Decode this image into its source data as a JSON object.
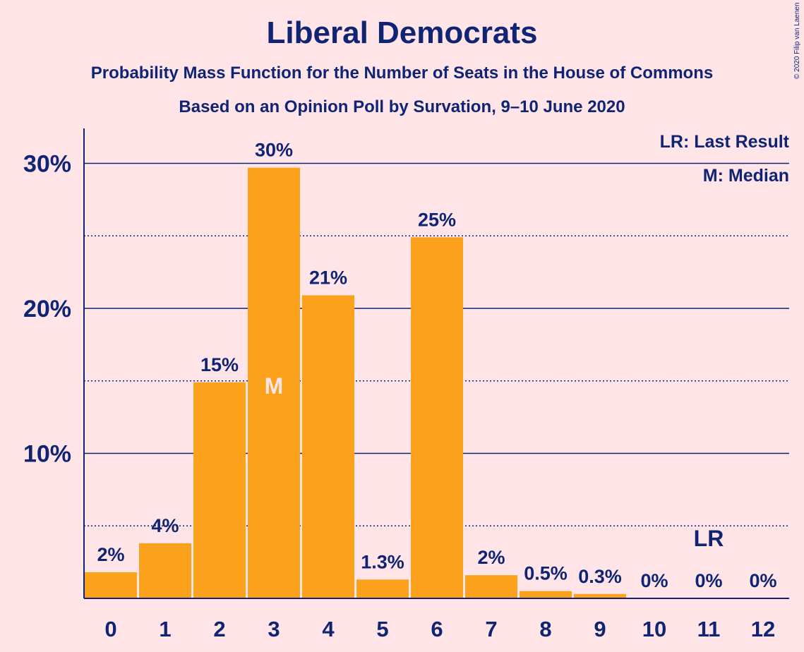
{
  "chart_data": {
    "type": "bar",
    "title": "Liberal Democrats",
    "subtitle": "Probability Mass Function for the Number of Seats in the House of Commons",
    "subtitle2": "Based on an Opinion Poll by Survation, 9–10 June 2020",
    "copyright": "© 2020 Filip van Laenen",
    "categories": [
      "0",
      "1",
      "2",
      "3",
      "4",
      "5",
      "6",
      "7",
      "8",
      "9",
      "10",
      "11",
      "12"
    ],
    "values": [
      1.8,
      3.8,
      14.9,
      29.7,
      20.9,
      1.3,
      24.9,
      1.6,
      0.5,
      0.3,
      0,
      0,
      0
    ],
    "value_labels": [
      "2%",
      "4%",
      "15%",
      "30%",
      "21%",
      "1.3%",
      "25%",
      "2%",
      "0.5%",
      "0.3%",
      "0%",
      "0%",
      "0%"
    ],
    "ylim": [
      0,
      32.5
    ],
    "yticks": [
      10,
      20,
      30
    ],
    "ytick_labels": [
      "10%",
      "20%",
      "30%"
    ],
    "minor_gridlines": [
      5,
      15,
      25
    ],
    "median_index": 3,
    "median_marker": "M",
    "last_result_index": 11,
    "last_result_marker": "LR",
    "legend": [
      "LR: Last Result",
      "M: Median"
    ],
    "legend_position": "top-right",
    "colors": {
      "bar": "#fba11b",
      "axis": "#0f2573",
      "background": "#ffe4e8",
      "median_text": "#ffe4e8"
    }
  }
}
